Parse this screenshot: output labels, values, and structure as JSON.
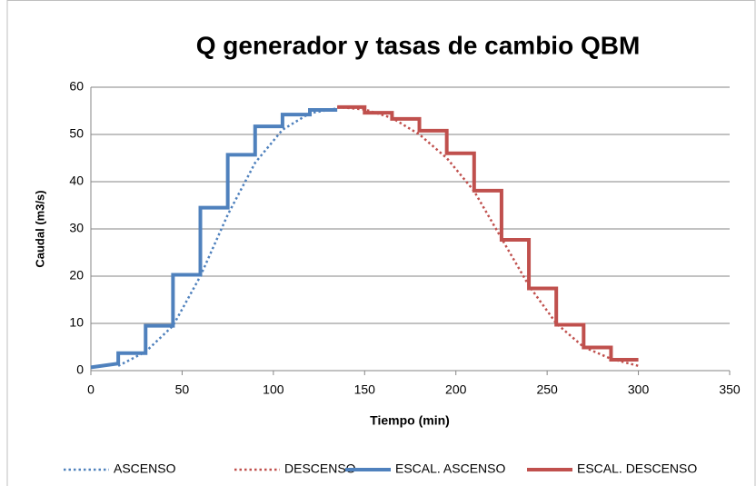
{
  "chart_data": {
    "type": "line",
    "title": "Q generador y tasas de cambio QBM",
    "xlabel": "Tiempo (min)",
    "ylabel": "Caudal (m3/s)",
    "xlim": [
      0,
      350
    ],
    "xticks": [
      0,
      50,
      100,
      150,
      200,
      250,
      300,
      350
    ],
    "ylim": [
      0,
      60
    ],
    "yticks": [
      0,
      10,
      20,
      30,
      40,
      50,
      60
    ],
    "grid": true,
    "legend": "bottom",
    "series": [
      {
        "name": "ASCENSO",
        "color": "#4f81bd",
        "style": "dotted",
        "x": [
          15,
          30,
          45,
          60,
          75,
          90,
          105,
          120,
          135
        ],
        "values": [
          1,
          4,
          9.5,
          20,
          33,
          44,
          51,
          54.5,
          55.5
        ]
      },
      {
        "name": "DESCENSO",
        "color": "#c0504d",
        "style": "dotted",
        "x": [
          135,
          150,
          165,
          180,
          195,
          210,
          225,
          240,
          255,
          270,
          285,
          300
        ],
        "values": [
          55.8,
          55.3,
          53.5,
          50,
          45,
          38,
          28,
          18,
          10,
          5,
          2.5,
          1
        ]
      },
      {
        "name": "ESCAL. ASCENSO",
        "color": "#4f81bd",
        "style": "solid",
        "x": [
          0,
          15,
          15,
          30,
          30,
          45,
          45,
          60,
          60,
          75,
          75,
          90,
          90,
          105,
          105,
          120,
          120,
          135
        ],
        "values": [
          0.7,
          1.5,
          3.7,
          3.7,
          9.5,
          9.5,
          20.3,
          20.3,
          34.5,
          34.5,
          45.7,
          45.7,
          51.7,
          51.7,
          54.2,
          54.2,
          55.2,
          55.2
        ]
      },
      {
        "name": "ESCAL. DESCENSO",
        "color": "#c0504d",
        "style": "solid",
        "x": [
          135,
          150,
          150,
          165,
          165,
          180,
          180,
          195,
          195,
          210,
          210,
          225,
          225,
          240,
          240,
          255,
          255,
          270,
          270,
          285,
          285,
          300
        ],
        "values": [
          55.8,
          55.8,
          54.6,
          54.6,
          53.3,
          53.3,
          50.8,
          50.8,
          46,
          46,
          38.1,
          38.1,
          27.7,
          27.7,
          17.4,
          17.4,
          9.7,
          9.7,
          4.9,
          4.9,
          2.3,
          2.3
        ]
      }
    ]
  }
}
